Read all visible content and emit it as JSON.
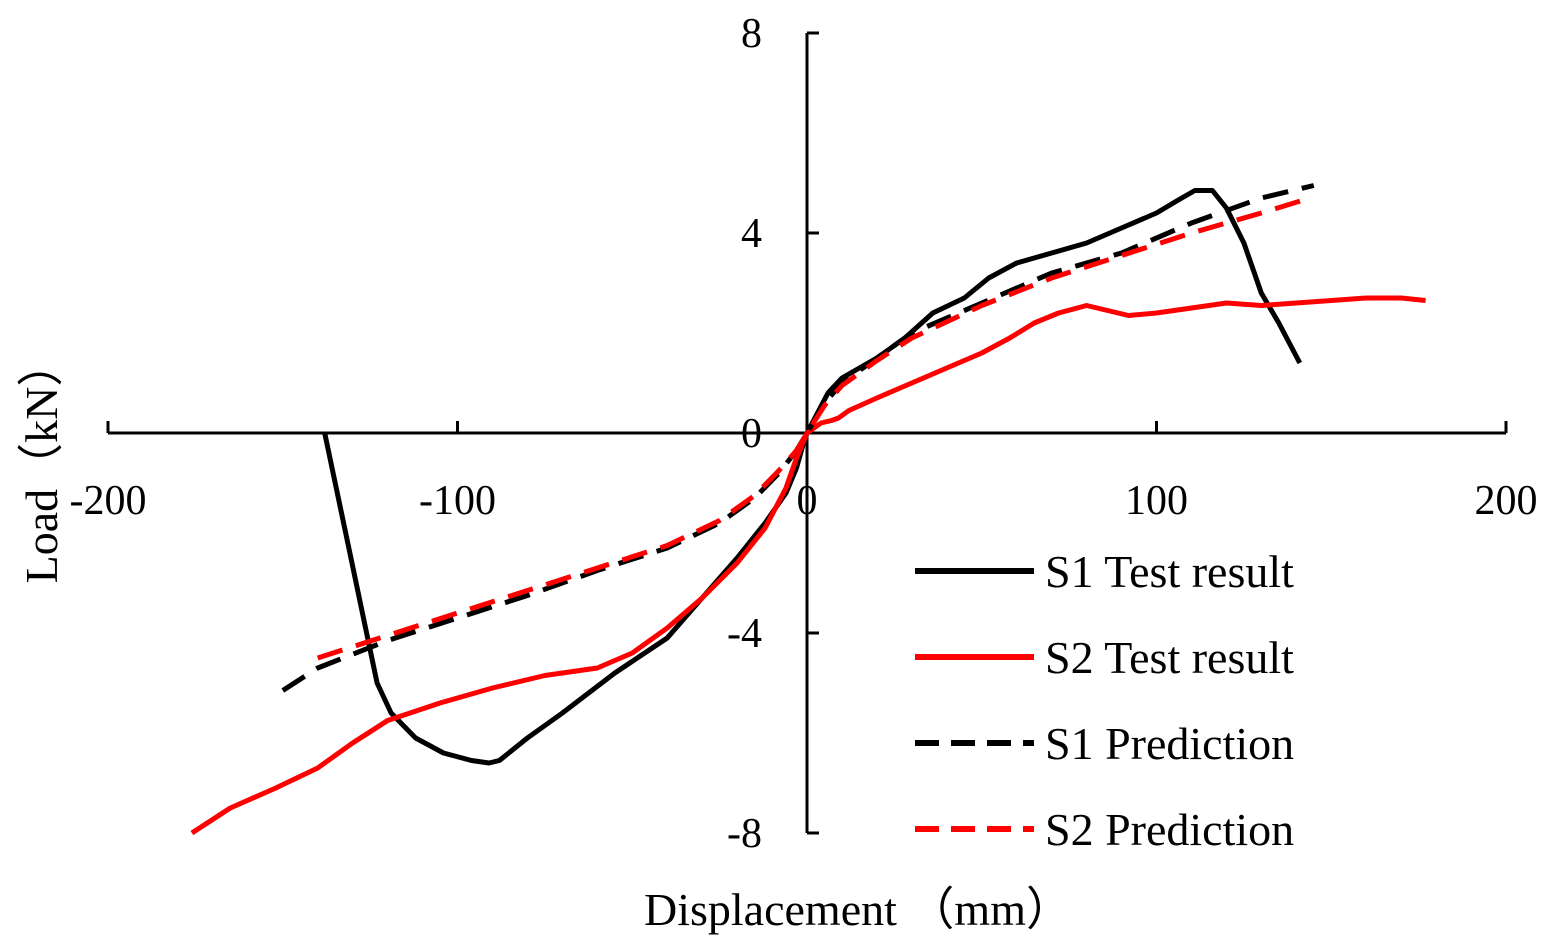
{
  "chart_data": {
    "type": "line",
    "title": "",
    "xlabel": "Displacement （mm）",
    "ylabel": "Load（kN）",
    "xlim": [
      -200,
      200
    ],
    "ylim": [
      -8,
      8
    ],
    "x_ticks": [
      -200,
      -100,
      0,
      100,
      200
    ],
    "y_ticks": [
      -8,
      -4,
      0,
      4,
      8
    ],
    "x_tick_labels": [
      "-200",
      "-100",
      "0",
      "100",
      "200"
    ],
    "y_tick_labels": [
      "-8",
      "-4",
      "0",
      "4",
      "8"
    ],
    "legend_position": "bottom-right",
    "series": [
      {
        "name": "S1 Test result",
        "color": "#000000",
        "dash": "solid",
        "points": [
          [
            -138,
            0
          ],
          [
            -132,
            -2
          ],
          [
            -126,
            -4
          ],
          [
            -123,
            -5
          ],
          [
            -119,
            -5.6
          ],
          [
            -112,
            -6.1
          ],
          [
            -104,
            -6.4
          ],
          [
            -96,
            -6.55
          ],
          [
            -91,
            -6.6
          ],
          [
            -88,
            -6.55
          ],
          [
            -80,
            -6.1
          ],
          [
            -70,
            -5.6
          ],
          [
            -55,
            -4.8
          ],
          [
            -40,
            -4.1
          ],
          [
            -30,
            -3.3
          ],
          [
            -20,
            -2.5
          ],
          [
            -12,
            -1.8
          ],
          [
            -6,
            -1.2
          ],
          [
            -3,
            -0.7
          ],
          [
            -1,
            -0.2
          ],
          [
            0,
            0
          ],
          [
            3,
            0.4
          ],
          [
            6,
            0.8
          ],
          [
            10,
            1.1
          ],
          [
            15,
            1.3
          ],
          [
            20,
            1.5
          ],
          [
            28,
            1.9
          ],
          [
            36,
            2.4
          ],
          [
            45,
            2.7
          ],
          [
            52,
            3.1
          ],
          [
            60,
            3.4
          ],
          [
            70,
            3.6
          ],
          [
            80,
            3.8
          ],
          [
            90,
            4.1
          ],
          [
            100,
            4.4
          ],
          [
            106,
            4.65
          ],
          [
            111,
            4.85
          ],
          [
            116,
            4.85
          ],
          [
            120,
            4.5
          ],
          [
            125,
            3.8
          ],
          [
            130,
            2.8
          ],
          [
            135,
            2.2
          ],
          [
            141,
            1.4
          ]
        ]
      },
      {
        "name": "S2 Test result",
        "color": "#ff0000",
        "dash": "solid",
        "points": [
          [
            -176,
            -8
          ],
          [
            -165,
            -7.5
          ],
          [
            -152,
            -7.1
          ],
          [
            -140,
            -6.7
          ],
          [
            -130,
            -6.2
          ],
          [
            -120,
            -5.75
          ],
          [
            -105,
            -5.4
          ],
          [
            -90,
            -5.1
          ],
          [
            -75,
            -4.85
          ],
          [
            -60,
            -4.7
          ],
          [
            -50,
            -4.4
          ],
          [
            -40,
            -3.9
          ],
          [
            -30,
            -3.3
          ],
          [
            -20,
            -2.6
          ],
          [
            -12,
            -1.9
          ],
          [
            -6,
            -1.1
          ],
          [
            -3,
            -0.5
          ],
          [
            0,
            0
          ],
          [
            4,
            0.2
          ],
          [
            7,
            0.25
          ],
          [
            9,
            0.3
          ],
          [
            12,
            0.45
          ],
          [
            20,
            0.7
          ],
          [
            30,
            1.0
          ],
          [
            40,
            1.3
          ],
          [
            50,
            1.6
          ],
          [
            58,
            1.9
          ],
          [
            65,
            2.2
          ],
          [
            72,
            2.4
          ],
          [
            80,
            2.55
          ],
          [
            86,
            2.45
          ],
          [
            92,
            2.35
          ],
          [
            100,
            2.4
          ],
          [
            110,
            2.5
          ],
          [
            120,
            2.6
          ],
          [
            130,
            2.55
          ],
          [
            140,
            2.6
          ],
          [
            150,
            2.65
          ],
          [
            160,
            2.7
          ],
          [
            170,
            2.7
          ],
          [
            177,
            2.65
          ]
        ]
      },
      {
        "name": "S1 Prediction",
        "color": "#000000",
        "dash": "dashed",
        "points": [
          [
            -150,
            -5.15
          ],
          [
            -140,
            -4.7
          ],
          [
            -120,
            -4.15
          ],
          [
            -100,
            -3.7
          ],
          [
            -80,
            -3.25
          ],
          [
            -60,
            -2.75
          ],
          [
            -40,
            -2.3
          ],
          [
            -25,
            -1.8
          ],
          [
            -15,
            -1.3
          ],
          [
            -8,
            -0.8
          ],
          [
            -3,
            -0.35
          ],
          [
            0,
            0
          ],
          [
            5,
            0.6
          ],
          [
            10,
            1.0
          ],
          [
            20,
            1.5
          ],
          [
            30,
            2.0
          ],
          [
            50,
            2.6
          ],
          [
            70,
            3.2
          ],
          [
            90,
            3.6
          ],
          [
            110,
            4.2
          ],
          [
            130,
            4.7
          ],
          [
            145,
            4.95
          ]
        ]
      },
      {
        "name": "S2 Prediction",
        "color": "#ff0000",
        "dash": "dashed",
        "points": [
          [
            -140,
            -4.5
          ],
          [
            -120,
            -4.05
          ],
          [
            -100,
            -3.6
          ],
          [
            -80,
            -3.15
          ],
          [
            -60,
            -2.7
          ],
          [
            -40,
            -2.25
          ],
          [
            -25,
            -1.75
          ],
          [
            -15,
            -1.25
          ],
          [
            -8,
            -0.75
          ],
          [
            -3,
            -0.35
          ],
          [
            0,
            0
          ],
          [
            5,
            0.55
          ],
          [
            10,
            0.95
          ],
          [
            20,
            1.45
          ],
          [
            30,
            1.9
          ],
          [
            50,
            2.55
          ],
          [
            70,
            3.1
          ],
          [
            90,
            3.55
          ],
          [
            110,
            4.0
          ],
          [
            130,
            4.4
          ],
          [
            144,
            4.7
          ]
        ]
      }
    ]
  }
}
